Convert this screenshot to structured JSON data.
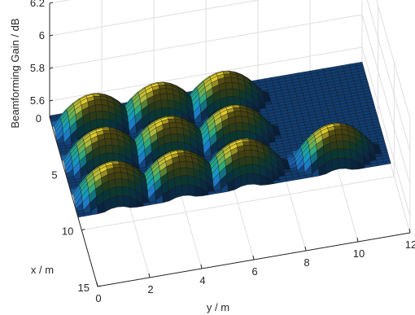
{
  "chart_data": {
    "type": "surface",
    "colormap": "parula",
    "zlabel": "Beamforming Gain / dB",
    "xlabel": "x / m",
    "ylabel": "y / m",
    "xlim": [
      0,
      15
    ],
    "ylim": [
      0,
      12
    ],
    "zlim": [
      5.5,
      6.2
    ],
    "x_ticks": [
      "0",
      "5",
      "10",
      "15"
    ],
    "y_ticks": [
      "0",
      "2",
      "4",
      "6",
      "8",
      "10",
      "12"
    ],
    "z_ticks": [
      "5.6",
      "5.8",
      "6",
      "6.2"
    ],
    "grid": true,
    "surface": {
      "description_values": {
        "peak_centers": [
          {
            "x": 1.5,
            "y": 1.5
          },
          {
            "x": 1.5,
            "y": 4.0
          },
          {
            "x": 1.5,
            "y": 6.5
          },
          {
            "x": 4.5,
            "y": 1.5
          },
          {
            "x": 4.5,
            "y": 4.0
          },
          {
            "x": 4.5,
            "y": 6.5
          },
          {
            "x": 7.5,
            "y": 1.5
          },
          {
            "x": 7.5,
            "y": 4.0
          },
          {
            "x": 7.5,
            "y": 6.5
          },
          {
            "x": 7.5,
            "y": 10.0
          }
        ],
        "peak_gain": 5.69,
        "edge_gain": 5.5,
        "x_extent": [
          0,
          9
        ],
        "y_extent": [
          0,
          12
        ]
      }
    }
  }
}
